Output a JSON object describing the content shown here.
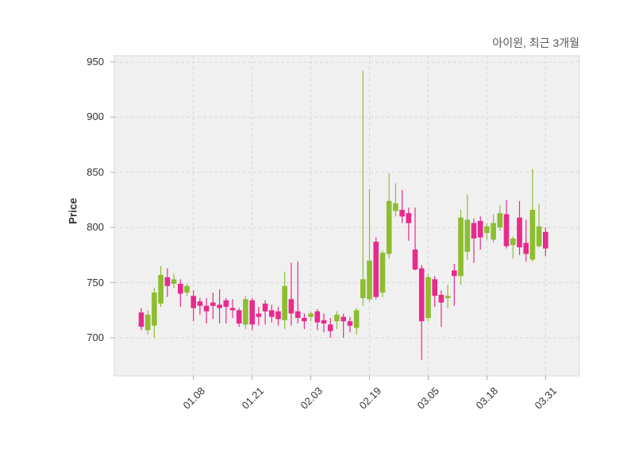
{
  "title": "아이윈, 최근 3개월",
  "y_axis": {
    "label": "Price",
    "ticks": [
      950,
      900,
      850,
      800,
      750,
      700
    ]
  },
  "x_axis": {
    "labels": [
      "01.08",
      "01.21",
      "02.03",
      "02.19",
      "03.05",
      "03.18",
      "03.31"
    ],
    "tick_indices": [
      8,
      17,
      26,
      35,
      44,
      53,
      62
    ]
  },
  "colors": {
    "up": "#8cbe30",
    "down": "#e92a8d",
    "plot_bg": "#f0f0f0",
    "grid": "#d7d7d7",
    "frame": "#d9d9d9",
    "tick": "#aaaaaa",
    "text": "#333333",
    "title_text": "#595959"
  },
  "chart_data": {
    "type": "candlestick",
    "title": "아이윈, 최근 3개월",
    "ylabel": "Price",
    "ylim": [
      665,
      957
    ],
    "grid": "dashed",
    "columns": [
      "open",
      "high",
      "low",
      "close"
    ],
    "values": [
      [
        723,
        727,
        707,
        710
      ],
      [
        707,
        725,
        703,
        721
      ],
      [
        711,
        745,
        700,
        741
      ],
      [
        731,
        765,
        728,
        757
      ],
      [
        755,
        763,
        737,
        747
      ],
      [
        749,
        758,
        745,
        753
      ],
      [
        749,
        753,
        728,
        740
      ],
      [
        741,
        749,
        738,
        747
      ],
      [
        738,
        743,
        715,
        727
      ],
      [
        733,
        736,
        721,
        729
      ],
      [
        729,
        736,
        713,
        724
      ],
      [
        732,
        741,
        717,
        729
      ],
      [
        730,
        744,
        713,
        727
      ],
      [
        734,
        736,
        713,
        728
      ],
      [
        727,
        735,
        718,
        725
      ],
      [
        725,
        727,
        710,
        713
      ],
      [
        712,
        738,
        708,
        735
      ],
      [
        734,
        736,
        707,
        712
      ],
      [
        722,
        728,
        711,
        719
      ],
      [
        731,
        734,
        712,
        724
      ],
      [
        725,
        730,
        714,
        719
      ],
      [
        724,
        728,
        711,
        717
      ],
      [
        716,
        760,
        708,
        747
      ],
      [
        735,
        768,
        711,
        722
      ],
      [
        724,
        769,
        713,
        718
      ],
      [
        718,
        722,
        708,
        715
      ],
      [
        719,
        724,
        715,
        722
      ],
      [
        724,
        726,
        707,
        714
      ],
      [
        716,
        722,
        705,
        713
      ],
      [
        712,
        718,
        700,
        706
      ],
      [
        715,
        724,
        708,
        721
      ],
      [
        719,
        722,
        700,
        715
      ],
      [
        715,
        719,
        705,
        711
      ],
      [
        709,
        727,
        703,
        725
      ],
      [
        736,
        942,
        729,
        753
      ],
      [
        735,
        835,
        733,
        770
      ],
      [
        787,
        791,
        735,
        737
      ],
      [
        741,
        779,
        737,
        777
      ],
      [
        776,
        849,
        772,
        824
      ],
      [
        815,
        840,
        810,
        822
      ],
      [
        816,
        834,
        804,
        810
      ],
      [
        813,
        818,
        788,
        804
      ],
      [
        780,
        818,
        761,
        762
      ],
      [
        763,
        766,
        680,
        715
      ],
      [
        718,
        758,
        715,
        755
      ],
      [
        753,
        756,
        728,
        738
      ],
      [
        739,
        743,
        710,
        732
      ],
      [
        736,
        748,
        727,
        738
      ],
      [
        761,
        767,
        729,
        756
      ],
      [
        756,
        816,
        748,
        809
      ],
      [
        778,
        830,
        771,
        807
      ],
      [
        804,
        808,
        768,
        790
      ],
      [
        806,
        810,
        780,
        791
      ],
      [
        795,
        804,
        789,
        801
      ],
      [
        789,
        812,
        786,
        804
      ],
      [
        800,
        820,
        797,
        813
      ],
      [
        812,
        825,
        781,
        783
      ],
      [
        784,
        792,
        772,
        790
      ],
      [
        809,
        824,
        775,
        782
      ],
      [
        786,
        807,
        769,
        776
      ],
      [
        771,
        853,
        769,
        816
      ],
      [
        783,
        821,
        782,
        801
      ],
      [
        796,
        800,
        774,
        781
      ]
    ]
  }
}
